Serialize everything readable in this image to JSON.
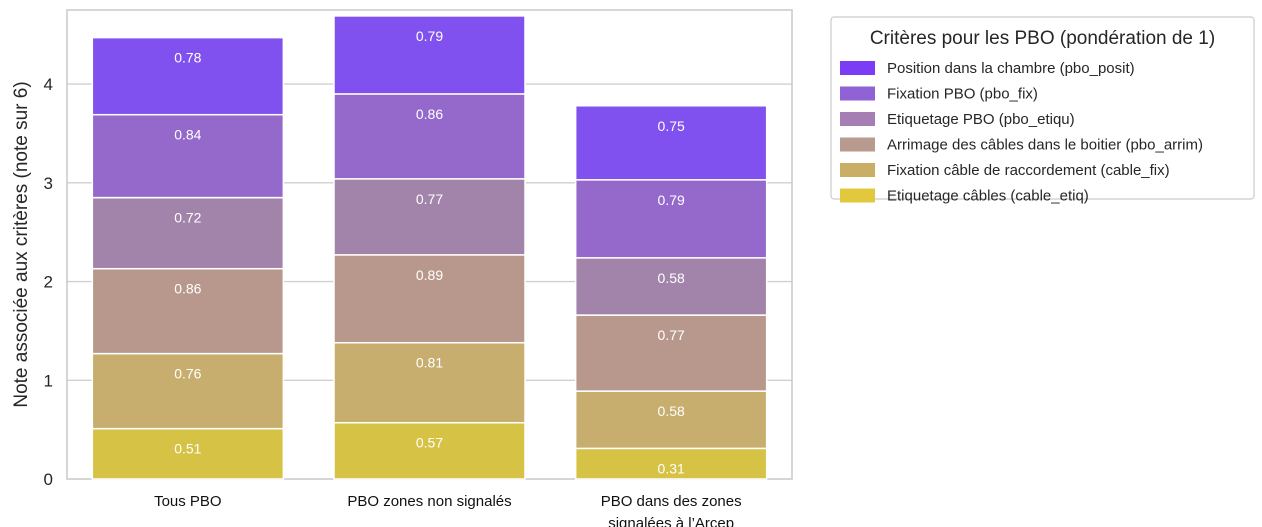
{
  "chart_data": {
    "type": "bar",
    "stacked": true,
    "categories": [
      "Tous PBO",
      "PBO zones non signalés",
      "PBO dans des zones signalées à l’Arcep"
    ],
    "series": [
      {
        "name": "Etiquetage câbles (cable_etiq)",
        "color": "#d6c244",
        "values": [
          0.51,
          0.57,
          0.31
        ]
      },
      {
        "name": "Fixation câble de raccordement (cable_fix)",
        "color": "#c7ad6e",
        "values": [
          0.76,
          0.81,
          0.58
        ]
      },
      {
        "name": "Arrimage des câbles dans le boitier (pbo_arrim)",
        "color": "#b8988c",
        "values": [
          0.86,
          0.89,
          0.77
        ]
      },
      {
        "name": "Etiquetage PBO (pbo_etiqu)",
        "color": "#a283aa",
        "values": [
          0.72,
          0.77,
          0.58
        ]
      },
      {
        "name": "Fixation PBO (pbo_fix)",
        "color": "#9469cb",
        "values": [
          0.84,
          0.86,
          0.79
        ]
      },
      {
        "name": "Position dans la chambre (pbo_posit)",
        "color": "#8051ee",
        "values": [
          0.78,
          0.79,
          0.75
        ]
      }
    ],
    "ylabel": "Note associée aux critères (note sur 6)",
    "xlabel": "",
    "ylim": [
      0,
      4.75
    ],
    "yticks": [
      0,
      1,
      2,
      3,
      4
    ],
    "grid": "horizontal",
    "legend": {
      "title": "Critères pour les PBO (pondération de 1)",
      "placement": "outside-right",
      "order": [
        "Position dans la chambre (pbo_posit)",
        "Fixation PBO (pbo_fix)",
        "Etiquetage PBO (pbo_etiqu)",
        "Arrimage des câbles dans le boitier (pbo_arrim)",
        "Fixation câble de raccordement (cable_fix)",
        "Etiquetage câbles (cable_etiq)"
      ],
      "colors": [
        "#7a3cf5",
        "#8f62d6",
        "#a57fb4",
        "#b89a8f",
        "#cbae66",
        "#e2c83c"
      ]
    },
    "category_label_lines": [
      [
        "Tous PBO"
      ],
      [
        "PBO zones non signalés"
      ],
      [
        "PBO dans des zones",
        "signalées à l’Arcep"
      ]
    ]
  }
}
